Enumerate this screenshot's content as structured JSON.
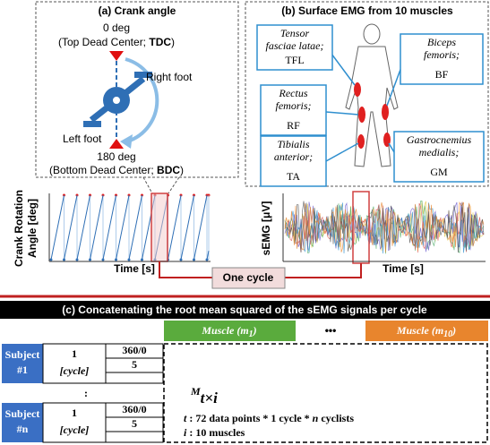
{
  "panel_a": {
    "title": "(a) Crank angle",
    "top_angle": "0 deg",
    "top_caption": {
      "before": "(Top Dead Center; ",
      "bold": "TDC",
      "after": ")"
    },
    "right_foot": "Right foot",
    "left_foot": "Left foot",
    "bottom_angle": "180 deg",
    "bottom_caption": {
      "before": "(Bottom Dead Center; ",
      "bold": "BDC",
      "after": ")"
    }
  },
  "panel_b": {
    "title": "(b) Surface EMG from 10 muscles",
    "muscles": [
      {
        "name": [
          "Tensor",
          "fasciae latae;"
        ],
        "abbr": "TFL"
      },
      {
        "name": [
          "Biceps",
          "femoris;"
        ],
        "abbr": "BF"
      },
      {
        "name": [
          "Rectus",
          "femoris;"
        ],
        "abbr": "RF"
      },
      {
        "name": [
          "Tibialis",
          "anterior;"
        ],
        "abbr": "TA"
      },
      {
        "name": [
          "Gastrocnemius",
          "medialis;"
        ],
        "abbr": "GM"
      }
    ]
  },
  "charts": {
    "crank": {
      "y_label": [
        "Crank Rotation",
        "Angle [deg]"
      ],
      "x_label": "Time [s]"
    },
    "emg": {
      "y_label": "sEMG [μV]",
      "x_label": "Time [s]"
    }
  },
  "one_cycle": "One cycle",
  "panel_c": {
    "title": "(c) Concatenating the root mean squared of the sEMG signals per cycle",
    "muscle_first": {
      "text": "Muscle (",
      "var": "m",
      "sub": "1",
      "close": ")"
    },
    "ellipsis": "•••",
    "muscle_last": {
      "text": "Muscle (",
      "var": "m",
      "sub": "10",
      "close": ")"
    },
    "subjects": [
      {
        "label": [
          "Subject",
          "#1"
        ],
        "cycle": "1",
        "cycle_unit": "[cycle]",
        "angle": "360/0",
        "row": "5"
      },
      {
        "label": [
          "Subject",
          "#n"
        ],
        "cycle": "1",
        "cycle_unit": "[cycle]",
        "angle": "360/0",
        "row": "5"
      }
    ],
    "vertical_dots": ":",
    "matrix": {
      "symbol": "M",
      "sub": "t×i"
    },
    "t_def": {
      "var": "t",
      "text": " : 72 data points * 1 cycle * ",
      "n": "n",
      "end": " cyclists"
    },
    "i_def": {
      "var": "i",
      "text": " :  10 muscles"
    }
  }
}
